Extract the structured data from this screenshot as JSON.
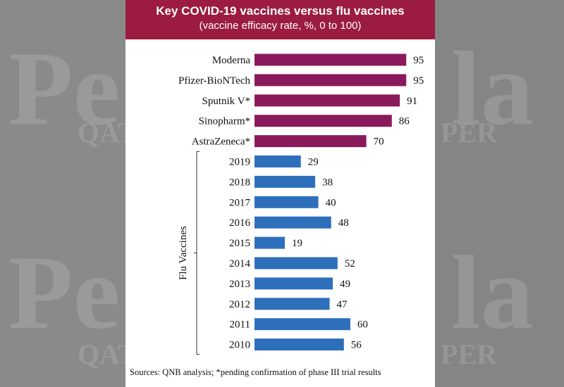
{
  "header": {
    "title": "Key COVID-19 vaccines versus flu vaccines",
    "subtitle": "(vaccine efficacy rate, %, 0 to 100)"
  },
  "footer": {
    "source": "Sources: QNB analysis; *pending confirmation of phase III trial results"
  },
  "watermark": {
    "lines": [
      "Pe",
      "la",
      "QAT",
      "PER"
    ]
  },
  "chart_data": {
    "type": "bar",
    "orientation": "horizontal",
    "title": "Key COVID-19 vaccines versus flu vaccines",
    "subtitle": "(vaccine efficacy rate, %, 0 to 100)",
    "xlim": [
      0,
      100
    ],
    "grid": false,
    "group_label": "Flu Vaccines",
    "colors": {
      "covid": "#8b1a5c",
      "flu": "#2e6fbb"
    },
    "categories": [
      "Moderna",
      "Pfizer-BioNTech",
      "Sputnik V*",
      "Sinopharm*",
      "AstraZeneca*",
      "2019",
      "2018",
      "2017",
      "2016",
      "2015",
      "2014",
      "2013",
      "2012",
      "2011",
      "2010"
    ],
    "values": [
      95,
      95,
      91,
      86,
      70,
      29,
      38,
      40,
      48,
      19,
      52,
      49,
      47,
      60,
      56
    ],
    "groups": [
      "covid",
      "covid",
      "covid",
      "covid",
      "covid",
      "flu",
      "flu",
      "flu",
      "flu",
      "flu",
      "flu",
      "flu",
      "flu",
      "flu",
      "flu"
    ]
  }
}
